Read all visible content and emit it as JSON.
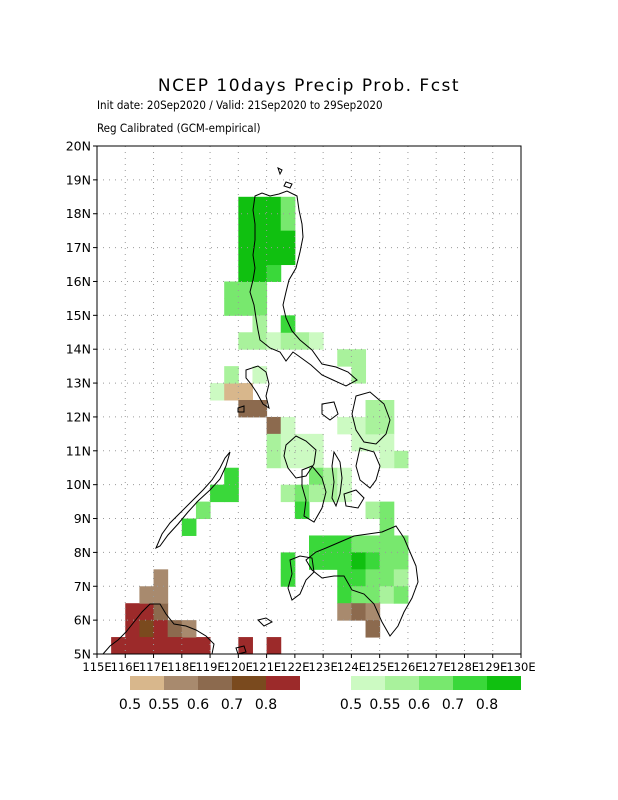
{
  "title": "NCEP 10days Precip Prob. Fcst",
  "subtitle_line1": "Init date: 20Sep2020 / Valid: 21Sep2020 to 29Sep2020",
  "subtitle_line2": "Reg Calibrated (GCM-empirical)",
  "map": {
    "lon_range": [
      115,
      130
    ],
    "lat_range": [
      5,
      20
    ],
    "y_ticks": [
      "5N",
      "6N",
      "7N",
      "8N",
      "9N",
      "10N",
      "11N",
      "12N",
      "13N",
      "14N",
      "15N",
      "16N",
      "17N",
      "18N",
      "19N",
      "20N"
    ],
    "x_ticks": [
      "115E",
      "116E",
      "117E",
      "118E",
      "119E",
      "120E",
      "121E",
      "122E",
      "123E",
      "124E",
      "125E",
      "126E",
      "127E",
      "128E",
      "129E",
      "130E"
    ],
    "grid": true
  },
  "colors": {
    "dry": [
      "#d8b78c",
      "#a88a6e",
      "#8c6a4e",
      "#7a4a1e",
      "#9c2a2a"
    ],
    "wet": [
      "#ccfac2",
      "#a9f29c",
      "#78e86e",
      "#3ad83a",
      "#10c010"
    ]
  },
  "legend_dry": {
    "labels": [
      "0.5",
      "0.55",
      "0.6",
      "0.7",
      "0.8"
    ]
  },
  "legend_wet": {
    "labels": [
      "0.5",
      "0.55",
      "0.6",
      "0.7",
      "0.8"
    ]
  },
  "cells": [
    {
      "lon": 119.0,
      "lat": 9.5,
      "c": "wet3"
    },
    {
      "lon": 119.5,
      "lat": 9.5,
      "c": "wet3"
    },
    {
      "lon": 118.5,
      "lat": 9.0,
      "c": "wet2"
    },
    {
      "lon": 118.0,
      "lat": 8.5,
      "c": "wet3"
    },
    {
      "lon": 119.5,
      "lat": 10.0,
      "c": "wet3"
    },
    {
      "lon": 119.0,
      "lat": 12.5,
      "c": "wet0"
    },
    {
      "lon": 119.5,
      "lat": 12.5,
      "c": "dry0"
    },
    {
      "lon": 120.0,
      "lat": 12.5,
      "c": "dry0"
    },
    {
      "lon": 120.0,
      "lat": 12.0,
      "c": "dry2"
    },
    {
      "lon": 120.5,
      "lat": 12.0,
      "c": "dry2"
    },
    {
      "lon": 120.5,
      "lat": 13.0,
      "c": "wet0"
    },
    {
      "lon": 119.5,
      "lat": 13.0,
      "c": "wet1"
    },
    {
      "lon": 120.0,
      "lat": 14.0,
      "c": "wet1"
    },
    {
      "lon": 120.5,
      "lat": 14.0,
      "c": "wet1"
    },
    {
      "lon": 121.0,
      "lat": 14.0,
      "c": "wet0"
    },
    {
      "lon": 121.5,
      "lat": 14.0,
      "c": "wet1"
    },
    {
      "lon": 122.0,
      "lat": 14.0,
      "c": "wet1"
    },
    {
      "lon": 122.5,
      "lat": 14.0,
      "c": "wet0"
    },
    {
      "lon": 121.5,
      "lat": 14.5,
      "c": "wet3"
    },
    {
      "lon": 119.5,
      "lat": 15.5,
      "c": "wet2"
    },
    {
      "lon": 119.5,
      "lat": 15.0,
      "c": "wet2"
    },
    {
      "lon": 120.0,
      "lat": 15.5,
      "c": "wet2"
    },
    {
      "lon": 120.0,
      "lat": 15.0,
      "c": "wet2"
    },
    {
      "lon": 120.5,
      "lat": 15.0,
      "c": "wet2"
    },
    {
      "lon": 120.5,
      "lat": 14.5,
      "c": "wet1"
    },
    {
      "lon": 120.5,
      "lat": 15.5,
      "c": "wet2"
    },
    {
      "lon": 120.0,
      "lat": 16.0,
      "c": "wet4"
    },
    {
      "lon": 120.5,
      "lat": 16.0,
      "c": "wet4"
    },
    {
      "lon": 121.0,
      "lat": 16.0,
      "c": "wet3"
    },
    {
      "lon": 120.0,
      "lat": 17.5,
      "c": "wet4"
    },
    {
      "lon": 120.0,
      "lat": 17.0,
      "c": "wet4"
    },
    {
      "lon": 120.0,
      "lat": 16.5,
      "c": "wet4"
    },
    {
      "lon": 120.5,
      "lat": 17.5,
      "c": "wet4"
    },
    {
      "lon": 120.5,
      "lat": 17.0,
      "c": "wet4"
    },
    {
      "lon": 120.5,
      "lat": 16.5,
      "c": "wet4"
    },
    {
      "lon": 121.0,
      "lat": 17.5,
      "c": "wet4"
    },
    {
      "lon": 121.0,
      "lat": 17.0,
      "c": "wet4"
    },
    {
      "lon": 121.0,
      "lat": 16.5,
      "c": "wet4"
    },
    {
      "lon": 121.5,
      "lat": 17.5,
      "c": "wet2"
    },
    {
      "lon": 121.5,
      "lat": 17.0,
      "c": "wet4"
    },
    {
      "lon": 121.5,
      "lat": 16.5,
      "c": "wet4"
    },
    {
      "lon": 120.0,
      "lat": 18.0,
      "c": "wet4"
    },
    {
      "lon": 120.5,
      "lat": 18.0,
      "c": "wet4"
    },
    {
      "lon": 121.0,
      "lat": 18.0,
      "c": "wet4"
    },
    {
      "lon": 121.5,
      "lat": 18.0,
      "c": "wet2"
    },
    {
      "lon": 121.0,
      "lat": 11.5,
      "c": "dry2"
    },
    {
      "lon": 121.0,
      "lat": 11.0,
      "c": "wet1"
    },
    {
      "lon": 121.0,
      "lat": 10.5,
      "c": "wet1"
    },
    {
      "lon": 121.5,
      "lat": 11.0,
      "c": "wet0"
    },
    {
      "lon": 121.5,
      "lat": 10.5,
      "c": "wet0"
    },
    {
      "lon": 121.5,
      "lat": 11.5,
      "c": "wet0"
    },
    {
      "lon": 122.0,
      "lat": 10.5,
      "c": "wet0"
    },
    {
      "lon": 122.5,
      "lat": 10.5,
      "c": "wet0"
    },
    {
      "lon": 122.5,
      "lat": 11.0,
      "c": "wet0"
    },
    {
      "lon": 122.0,
      "lat": 11.0,
      "c": "wet0"
    },
    {
      "lon": 121.5,
      "lat": 9.5,
      "c": "wet1"
    },
    {
      "lon": 122.0,
      "lat": 9.5,
      "c": "wet2"
    },
    {
      "lon": 122.0,
      "lat": 9.0,
      "c": "wet3"
    },
    {
      "lon": 122.5,
      "lat": 10.0,
      "c": "wet2"
    },
    {
      "lon": 122.5,
      "lat": 9.5,
      "c": "wet1"
    },
    {
      "lon": 123.0,
      "lat": 10.0,
      "c": "wet1"
    },
    {
      "lon": 123.0,
      "lat": 9.5,
      "c": "wet1"
    },
    {
      "lon": 123.5,
      "lat": 9.5,
      "c": "wet0"
    },
    {
      "lon": 123.5,
      "lat": 10.0,
      "c": "wet0"
    },
    {
      "lon": 123.5,
      "lat": 11.5,
      "c": "wet0"
    },
    {
      "lon": 124.0,
      "lat": 11.5,
      "c": "wet0"
    },
    {
      "lon": 124.0,
      "lat": 11.0,
      "c": "wet0"
    },
    {
      "lon": 124.5,
      "lat": 11.0,
      "c": "wet0"
    },
    {
      "lon": 124.5,
      "lat": 12.0,
      "c": "wet1"
    },
    {
      "lon": 125.0,
      "lat": 12.0,
      "c": "wet1"
    },
    {
      "lon": 124.5,
      "lat": 11.5,
      "c": "wet1"
    },
    {
      "lon": 125.0,
      "lat": 11.5,
      "c": "wet1"
    },
    {
      "lon": 125.0,
      "lat": 11.0,
      "c": "wet0"
    },
    {
      "lon": 125.5,
      "lat": 10.5,
      "c": "wet1"
    },
    {
      "lon": 125.0,
      "lat": 10.5,
      "c": "wet0"
    },
    {
      "lon": 123.5,
      "lat": 13.5,
      "c": "wet1"
    },
    {
      "lon": 124.0,
      "lat": 13.5,
      "c": "wet1"
    },
    {
      "lon": 124.0,
      "lat": 13.0,
      "c": "wet1"
    },
    {
      "lon": 124.5,
      "lat": 9.0,
      "c": "wet1"
    },
    {
      "lon": 125.0,
      "lat": 9.0,
      "c": "wet2"
    },
    {
      "lon": 125.0,
      "lat": 8.5,
      "c": "wet2"
    },
    {
      "lon": 121.5,
      "lat": 7.5,
      "c": "wet3"
    },
    {
      "lon": 121.5,
      "lat": 7.0,
      "c": "wet3"
    },
    {
      "lon": 122.5,
      "lat": 8.0,
      "c": "wet3"
    },
    {
      "lon": 123.0,
      "lat": 8.0,
      "c": "wet3"
    },
    {
      "lon": 123.5,
      "lat": 8.0,
      "c": "wet3"
    },
    {
      "lon": 124.0,
      "lat": 8.0,
      "c": "wet2"
    },
    {
      "lon": 124.5,
      "lat": 8.0,
      "c": "wet2"
    },
    {
      "lon": 125.0,
      "lat": 8.0,
      "c": "wet2"
    },
    {
      "lon": 125.5,
      "lat": 8.0,
      "c": "wet2"
    },
    {
      "lon": 122.5,
      "lat": 7.5,
      "c": "wet3"
    },
    {
      "lon": 123.0,
      "lat": 7.5,
      "c": "wet3"
    },
    {
      "lon": 123.5,
      "lat": 7.5,
      "c": "wet3"
    },
    {
      "lon": 124.0,
      "lat": 7.5,
      "c": "wet4"
    },
    {
      "lon": 124.5,
      "lat": 7.5,
      "c": "wet3"
    },
    {
      "lon": 125.0,
      "lat": 7.5,
      "c": "wet2"
    },
    {
      "lon": 125.5,
      "lat": 7.5,
      "c": "wet2"
    },
    {
      "lon": 123.5,
      "lat": 7.0,
      "c": "wet3"
    },
    {
      "lon": 124.0,
      "lat": 7.0,
      "c": "wet3"
    },
    {
      "lon": 124.5,
      "lat": 7.0,
      "c": "wet2"
    },
    {
      "lon": 125.0,
      "lat": 7.0,
      "c": "wet2"
    },
    {
      "lon": 125.5,
      "lat": 7.0,
      "c": "wet1"
    },
    {
      "lon": 123.5,
      "lat": 6.5,
      "c": "wet3"
    },
    {
      "lon": 124.0,
      "lat": 6.5,
      "c": "wet2"
    },
    {
      "lon": 124.5,
      "lat": 6.5,
      "c": "wet2"
    },
    {
      "lon": 125.0,
      "lat": 6.5,
      "c": "wet1"
    },
    {
      "lon": 125.5,
      "lat": 6.5,
      "c": "wet2"
    },
    {
      "lon": 123.5,
      "lat": 6.0,
      "c": "dry1"
    },
    {
      "lon": 124.0,
      "lat": 6.0,
      "c": "dry2"
    },
    {
      "lon": 124.5,
      "lat": 6.0,
      "c": "dry1"
    },
    {
      "lon": 124.5,
      "lat": 5.5,
      "c": "dry2"
    },
    {
      "lon": 116.0,
      "lat": 6.0,
      "c": "dry4"
    },
    {
      "lon": 116.5,
      "lat": 6.0,
      "c": "dry4"
    },
    {
      "lon": 117.0,
      "lat": 6.0,
      "c": "dry2"
    },
    {
      "lon": 116.0,
      "lat": 5.5,
      "c": "dry4"
    },
    {
      "lon": 116.5,
      "lat": 5.5,
      "c": "dry3"
    },
    {
      "lon": 117.0,
      "lat": 5.5,
      "c": "dry4"
    },
    {
      "lon": 115.5,
      "lat": 5.0,
      "c": "dry4"
    },
    {
      "lon": 116.0,
      "lat": 5.0,
      "c": "dry4"
    },
    {
      "lon": 116.5,
      "lat": 5.0,
      "c": "dry4"
    },
    {
      "lon": 117.0,
      "lat": 5.0,
      "c": "dry4"
    },
    {
      "lon": 117.5,
      "lat": 5.0,
      "c": "dry4"
    },
    {
      "lon": 118.0,
      "lat": 5.0,
      "c": "dry4"
    },
    {
      "lon": 118.5,
      "lat": 5.0,
      "c": "dry4"
    },
    {
      "lon": 116.5,
      "lat": 6.5,
      "c": "dry1"
    },
    {
      "lon": 117.0,
      "lat": 6.5,
      "c": "dry1"
    },
    {
      "lon": 117.0,
      "lat": 7.0,
      "c": "dry1"
    },
    {
      "lon": 117.5,
      "lat": 5.5,
      "c": "dry2"
    },
    {
      "lon": 118.0,
      "lat": 5.5,
      "c": "dry1"
    },
    {
      "lon": 117.5,
      "lat": 5.0,
      "c": "dry4"
    },
    {
      "lon": 120.0,
      "lat": 5.0,
      "c": "dry4"
    },
    {
      "lon": 121.0,
      "lat": 5.0,
      "c": "dry4"
    }
  ]
}
